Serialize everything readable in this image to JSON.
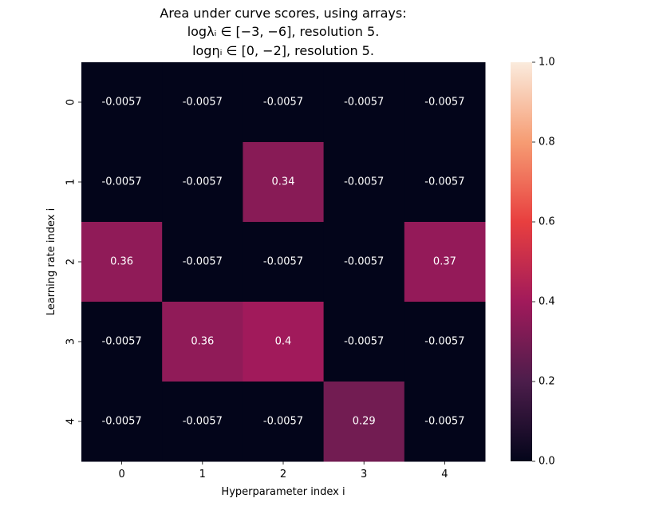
{
  "chart_data": {
    "type": "heatmap",
    "title_lines": [
      "Area under curve scores, using arrays:",
      "logλᵢ ∈ [−3, −6], resolution 5.",
      "logηᵢ ∈ [0, −2], resolution 5."
    ],
    "xlabel": "Hyperparameter index i",
    "ylabel": "Learning rate index i",
    "x_categories": [
      "0",
      "1",
      "2",
      "3",
      "4"
    ],
    "y_categories": [
      "0",
      "1",
      "2",
      "3",
      "4"
    ],
    "values": [
      [
        -0.0057,
        -0.0057,
        -0.0057,
        -0.0057,
        -0.0057
      ],
      [
        -0.0057,
        -0.0057,
        0.34,
        -0.0057,
        -0.0057
      ],
      [
        0.36,
        -0.0057,
        -0.0057,
        -0.0057,
        0.37
      ],
      [
        -0.0057,
        0.36,
        0.4,
        -0.0057,
        -0.0057
      ],
      [
        -0.0057,
        -0.0057,
        -0.0057,
        0.29,
        -0.0057
      ]
    ],
    "value_labels": [
      [
        "-0.0057",
        "-0.0057",
        "-0.0057",
        "-0.0057",
        "-0.0057"
      ],
      [
        "-0.0057",
        "-0.0057",
        "0.34",
        "-0.0057",
        "-0.0057"
      ],
      [
        "0.36",
        "-0.0057",
        "-0.0057",
        "-0.0057",
        "0.37"
      ],
      [
        "-0.0057",
        "0.36",
        "0.4",
        "-0.0057",
        "-0.0057"
      ],
      [
        "-0.0057",
        "-0.0057",
        "-0.0057",
        "0.29",
        "-0.0057"
      ]
    ],
    "colorbar": {
      "range": [
        0.0,
        1.0
      ],
      "ticks": [
        "0.0",
        "0.2",
        "0.4",
        "0.6",
        "0.8",
        "1.0"
      ],
      "colormap": "rocket",
      "colors": [
        "#03051a",
        "#4c1d4b",
        "#a11a5b",
        "#e83f3f",
        "#f69c73",
        "#faebdd"
      ]
    },
    "grid": false
  }
}
